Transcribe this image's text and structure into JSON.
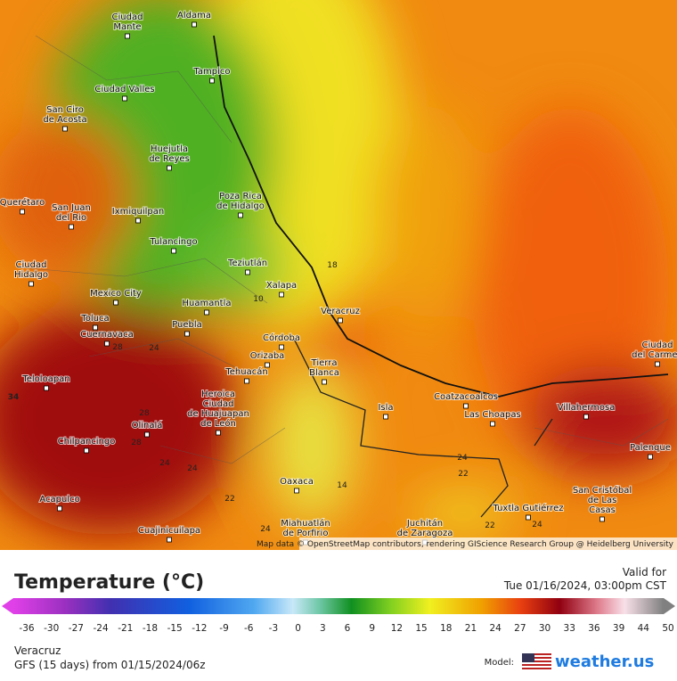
{
  "map": {
    "cities": [
      {
        "lines": [
          "Ciudad",
          "Mante"
        ]
      },
      {
        "lines": [
          "Aldama"
        ]
      },
      {
        "lines": [
          "Tampico"
        ]
      },
      {
        "lines": [
          "Ciudad Valles"
        ]
      },
      {
        "lines": [
          "San Ciro",
          "de Acosta"
        ]
      },
      {
        "lines": [
          "Huejutla",
          "de Reyes"
        ]
      },
      {
        "lines": [
          "San Juan",
          "del Rio"
        ]
      },
      {
        "lines": [
          "Ixmiquilpan"
        ]
      },
      {
        "lines": [
          "Poza Rica",
          "de Hidalgo"
        ]
      },
      {
        "lines": [
          "Querétaro"
        ]
      },
      {
        "lines": [
          "Tulancingo"
        ]
      },
      {
        "lines": [
          "Teziutlán"
        ]
      },
      {
        "lines": [
          "Ciudad",
          "Hidalgo"
        ]
      },
      {
        "lines": [
          "Xalapa"
        ]
      },
      {
        "lines": [
          "Mexico City"
        ]
      },
      {
        "lines": [
          "Huamantla"
        ]
      },
      {
        "lines": [
          "Veracruz"
        ]
      },
      {
        "lines": [
          "Toluca"
        ]
      },
      {
        "lines": [
          "Puebla"
        ]
      },
      {
        "lines": [
          "Cuernavaca"
        ]
      },
      {
        "lines": [
          "Córdoba"
        ]
      },
      {
        "lines": [
          "Orizaba"
        ]
      },
      {
        "lines": [
          "Tierra",
          "Blanca"
        ]
      },
      {
        "lines": [
          "Tehuacán"
        ]
      },
      {
        "lines": [
          "Teloloapan"
        ]
      },
      {
        "lines": [
          "Coatzacoalcos"
        ]
      },
      {
        "lines": [
          "Heroica",
          "Ciudad",
          "de Huajuapan",
          "de León"
        ]
      },
      {
        "lines": [
          "Isla"
        ]
      },
      {
        "lines": [
          "Las Choapas"
        ]
      },
      {
        "lines": [
          "Villahermosa"
        ]
      },
      {
        "lines": [
          "Olinalá"
        ]
      },
      {
        "lines": [
          "Chilpancingo"
        ]
      },
      {
        "lines": [
          "Palenque"
        ]
      },
      {
        "lines": [
          "Oaxaca"
        ]
      },
      {
        "lines": [
          "Acapulco"
        ]
      },
      {
        "lines": [
          "San Cristóbal",
          "de Las",
          "Casas"
        ]
      },
      {
        "lines": [
          "Tuxtla Gutiérrez"
        ]
      },
      {
        "lines": [
          "Cuajinicuilapa"
        ]
      },
      {
        "lines": [
          "Miahuatlán",
          "de Porfirio"
        ]
      },
      {
        "lines": [
          "Juchitán",
          "de Zaragoza"
        ]
      },
      {
        "lines": [
          "Ciudad",
          "del Carmen"
        ]
      }
    ],
    "contour_labels": [
      "18",
      "10",
      "24",
      "28",
      "34",
      "28",
      "28",
      "24",
      "24",
      "14",
      "22",
      "24",
      "22",
      "24",
      "22",
      "24"
    ],
    "attribution": "Map data © OpenStreetMap contributors, rendering GIScience Research Group @ Heidelberg University"
  },
  "legend": {
    "title": "Temperature (°C)",
    "valid_label": "Valid for",
    "valid_time": "Tue 01/16/2024, 03:00pm CST",
    "ticks": [
      "-36",
      "-30",
      "-27",
      "-24",
      "-21",
      "-18",
      "-15",
      "-12",
      "-9",
      "-6",
      "-3",
      "0",
      "3",
      "6",
      "9",
      "12",
      "15",
      "18",
      "21",
      "24",
      "27",
      "30",
      "33",
      "36",
      "39",
      "44",
      "50"
    ]
  },
  "footer": {
    "location": "Veracruz",
    "model_run": "GFS (15 days) from 01/15/2024/06z",
    "model_label": "Model:",
    "brand": "weather.us"
  }
}
